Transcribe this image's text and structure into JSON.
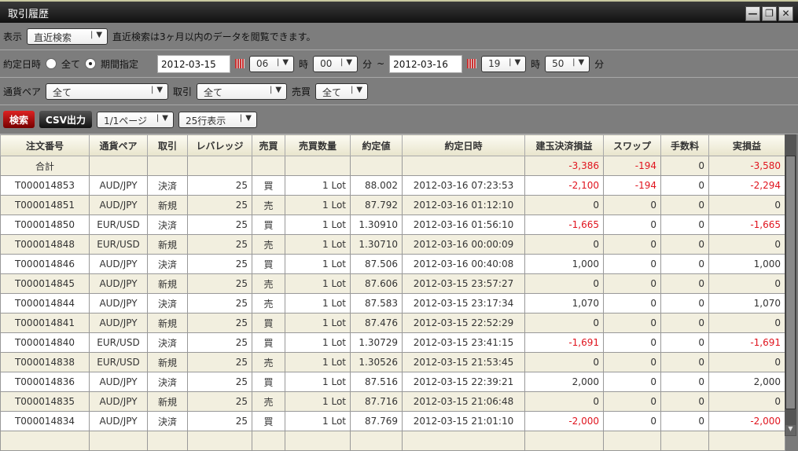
{
  "window": {
    "title": "取引履歴"
  },
  "row1": {
    "label": "表示",
    "mode": "直近検索",
    "note": "直近検索は3ヶ月以内のデータを閲覧できます。"
  },
  "row2": {
    "label": "約定日時",
    "opt_all": "全て",
    "opt_range": "期間指定",
    "from_date": "2012-03-15",
    "from_hour": "06",
    "hour_unit": "時",
    "from_min": "00",
    "min_unit": "分",
    "tilde": "~",
    "to_date": "2012-03-16",
    "to_hour": "19",
    "to_min": "50"
  },
  "row3": {
    "pair_label": "通貨ペア",
    "pair": "全て",
    "trade_label": "取引",
    "trade": "全て",
    "side_label": "売買",
    "side": "全て"
  },
  "row4": {
    "search": "検索",
    "csv": "CSV出力",
    "page": "1/1ページ",
    "rows": "25行表示"
  },
  "table": {
    "headers": [
      "注文番号",
      "通貨ペア",
      "取引",
      "レバレッジ",
      "売買",
      "売買数量",
      "約定値",
      "約定日時",
      "建玉決済損益",
      "スワップ",
      "手数料",
      "実損益"
    ],
    "total": {
      "label": "合計",
      "pl": "-3,386",
      "swap": "-194",
      "fee": "0",
      "real": "-3,580"
    },
    "rows": [
      [
        "T000014853",
        "AUD/JPY",
        "決済",
        "25",
        "買",
        "1 Lot",
        "88.002",
        "2012-03-16 07:23:53",
        "-2,100",
        "-194",
        "0",
        "-2,294"
      ],
      [
        "T000014851",
        "AUD/JPY",
        "新規",
        "25",
        "売",
        "1 Lot",
        "87.792",
        "2012-03-16 01:12:10",
        "0",
        "0",
        "0",
        "0"
      ],
      [
        "T000014850",
        "EUR/USD",
        "決済",
        "25",
        "買",
        "1 Lot",
        "1.30910",
        "2012-03-16 01:56:10",
        "-1,665",
        "0",
        "0",
        "-1,665"
      ],
      [
        "T000014848",
        "EUR/USD",
        "新規",
        "25",
        "売",
        "1 Lot",
        "1.30710",
        "2012-03-16 00:00:09",
        "0",
        "0",
        "0",
        "0"
      ],
      [
        "T000014846",
        "AUD/JPY",
        "決済",
        "25",
        "買",
        "1 Lot",
        "87.506",
        "2012-03-16 00:40:08",
        "1,000",
        "0",
        "0",
        "1,000"
      ],
      [
        "T000014845",
        "AUD/JPY",
        "新規",
        "25",
        "売",
        "1 Lot",
        "87.606",
        "2012-03-15 23:57:27",
        "0",
        "0",
        "0",
        "0"
      ],
      [
        "T000014844",
        "AUD/JPY",
        "決済",
        "25",
        "売",
        "1 Lot",
        "87.583",
        "2012-03-15 23:17:34",
        "1,070",
        "0",
        "0",
        "1,070"
      ],
      [
        "T000014841",
        "AUD/JPY",
        "新規",
        "25",
        "買",
        "1 Lot",
        "87.476",
        "2012-03-15 22:52:29",
        "0",
        "0",
        "0",
        "0"
      ],
      [
        "T000014840",
        "EUR/USD",
        "決済",
        "25",
        "買",
        "1 Lot",
        "1.30729",
        "2012-03-15 23:41:15",
        "-1,691",
        "0",
        "0",
        "-1,691"
      ],
      [
        "T000014838",
        "EUR/USD",
        "新規",
        "25",
        "売",
        "1 Lot",
        "1.30526",
        "2012-03-15 21:53:45",
        "0",
        "0",
        "0",
        "0"
      ],
      [
        "T000014836",
        "AUD/JPY",
        "決済",
        "25",
        "買",
        "1 Lot",
        "87.516",
        "2012-03-15 22:39:21",
        "2,000",
        "0",
        "0",
        "2,000"
      ],
      [
        "T000014835",
        "AUD/JPY",
        "新規",
        "25",
        "売",
        "1 Lot",
        "87.716",
        "2012-03-15 21:06:48",
        "0",
        "0",
        "0",
        "0"
      ],
      [
        "T000014834",
        "AUD/JPY",
        "決済",
        "25",
        "買",
        "1 Lot",
        "87.769",
        "2012-03-15 21:01:10",
        "-2,000",
        "0",
        "0",
        "-2,000"
      ]
    ]
  },
  "colors": {
    "negative": "#e0141e",
    "search_button": "#c01010"
  }
}
